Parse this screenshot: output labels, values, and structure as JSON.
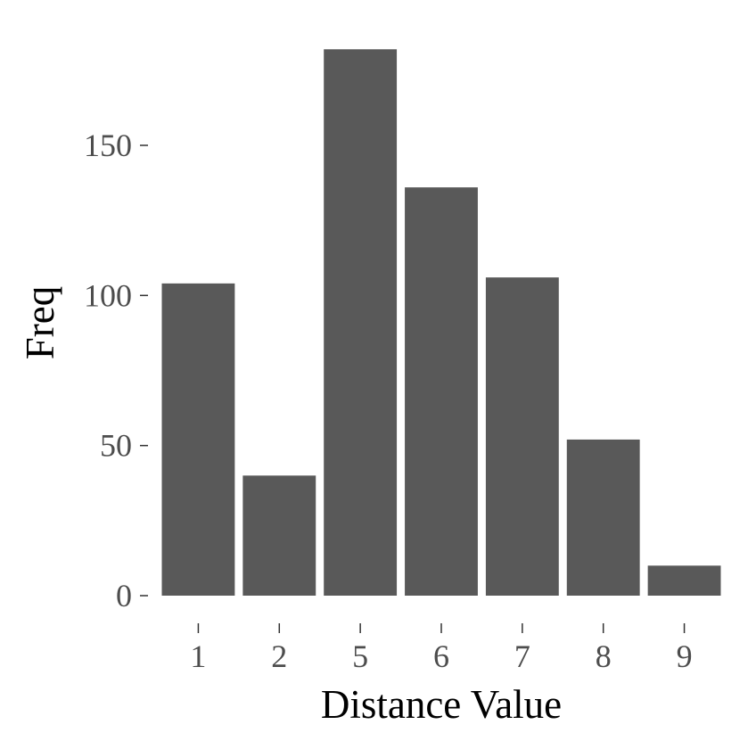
{
  "chart_data": {
    "type": "bar",
    "categories": [
      "1",
      "2",
      "5",
      "6",
      "7",
      "8",
      "9"
    ],
    "values": [
      104,
      40,
      182,
      136,
      106,
      52,
      10
    ],
    "xlabel": "Distance Value",
    "ylabel": "Freq",
    "ylim": [
      0,
      182
    ],
    "yticks": [
      0,
      50,
      100,
      150
    ],
    "grid": false,
    "legend": "none",
    "colors": {
      "bar": "#595959",
      "tick_text": "#4d4d4d",
      "axis_title": "#000000",
      "tick_mark": "#333333"
    }
  }
}
